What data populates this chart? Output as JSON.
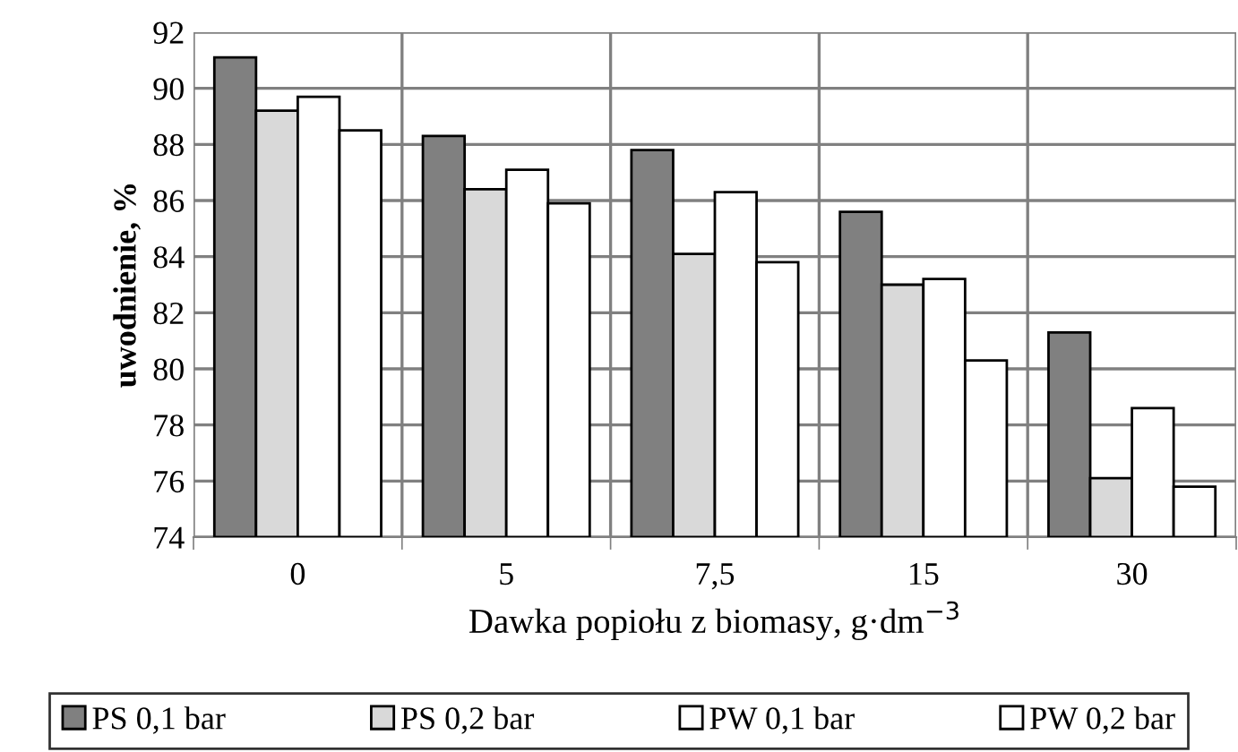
{
  "chart_data": {
    "type": "bar",
    "xlabel": "Dawka popiołu z biomasy, g·dm$^{−3}$",
    "ylabel": "uwodnienie, %",
    "categories": [
      "0",
      "5",
      "7,5",
      "15",
      "30"
    ],
    "series": [
      {
        "name": "PS 0,1 bar",
        "color": "#808080",
        "values": [
          91.1,
          88.3,
          87.8,
          85.6,
          81.3
        ]
      },
      {
        "name": "PS 0,2 bar",
        "color": "#d9d9d9",
        "values": [
          89.2,
          86.4,
          84.1,
          83.0,
          76.1
        ]
      },
      {
        "name": "PW 0,1 bar",
        "color": "#ffffff",
        "values": [
          89.7,
          87.1,
          86.3,
          83.2,
          78.6
        ]
      },
      {
        "name": "PW 0,2 bar",
        "color": "#ffffff",
        "values": [
          88.5,
          85.9,
          83.8,
          80.3,
          75.8
        ]
      }
    ],
    "ylim": [
      74,
      92
    ],
    "yticks": [
      74,
      76,
      78,
      80,
      82,
      84,
      86,
      88,
      90,
      92
    ],
    "grid": true,
    "legend": "bottom"
  }
}
